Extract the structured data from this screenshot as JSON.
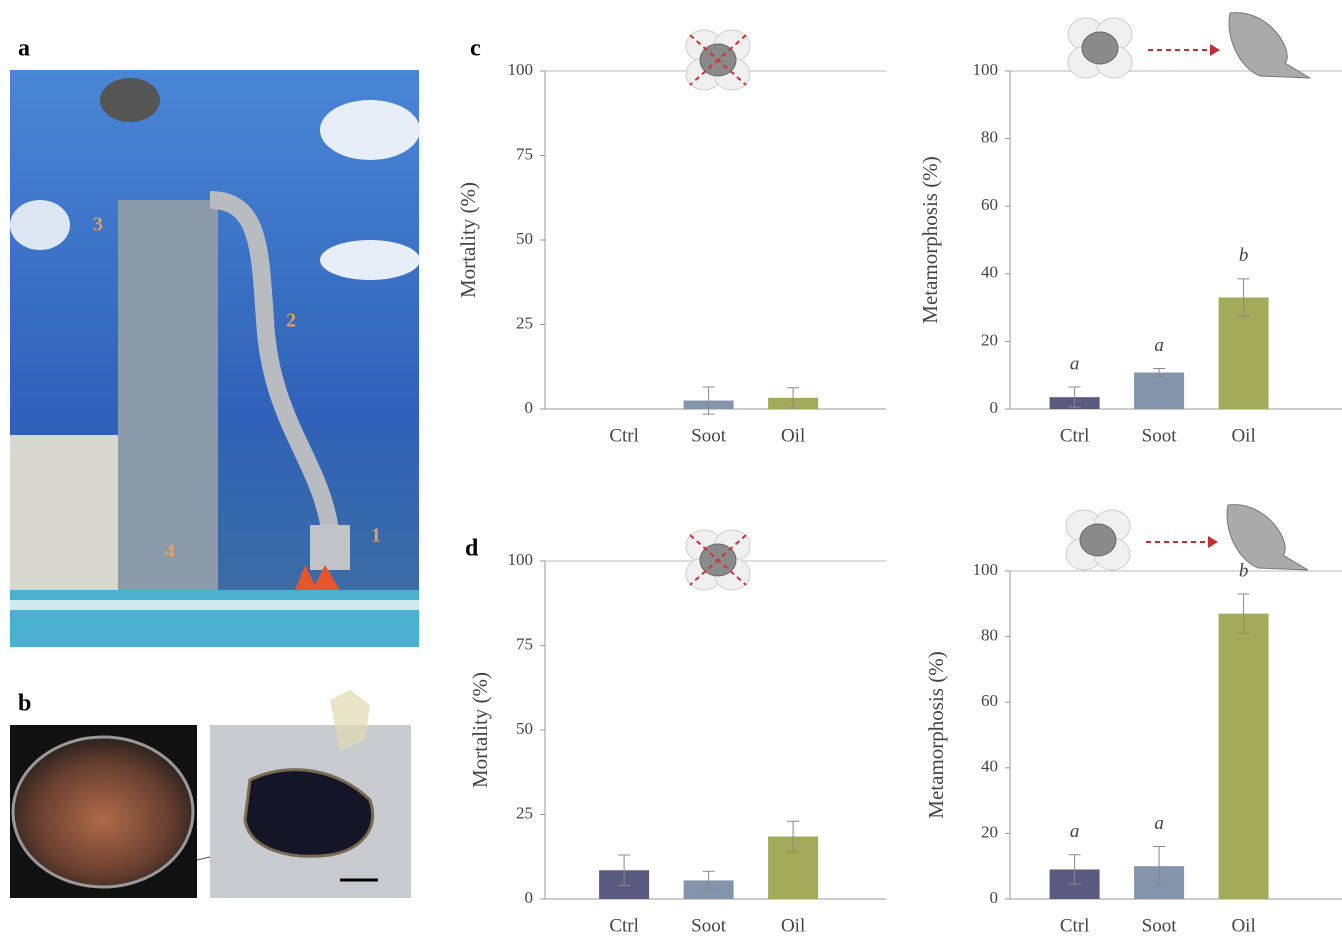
{
  "panel_labels": [
    "a",
    "b",
    "c",
    "d"
  ],
  "photo_labels": [
    "1",
    "2",
    "3",
    "4"
  ],
  "chart_data": [
    {
      "type": "bar",
      "ylabel": "Mortality (%)",
      "categories": [
        "Ctrl",
        "Soot",
        "Oil"
      ],
      "values": [
        0,
        2.5,
        3.3
      ],
      "errors": [
        0,
        4,
        3
      ],
      "colors": [
        "#5a5a80",
        "#8494ab",
        "#a2ab5a"
      ],
      "ylim": [
        0,
        100
      ],
      "yticks": [
        0,
        25,
        50,
        75,
        100
      ]
    },
    {
      "type": "bar",
      "ylabel": "Metamorphosis (%)",
      "categories": [
        "Ctrl",
        "Soot",
        "Oil"
      ],
      "values": [
        3.5,
        10.8,
        33
      ],
      "errors": [
        3,
        1.2,
        5.5
      ],
      "colors": [
        "#5a5a80",
        "#8494ab",
        "#a2ab5a"
      ],
      "annotations": [
        "a",
        "a",
        "b"
      ],
      "ylim": [
        0,
        100
      ],
      "yticks": [
        0,
        20,
        40,
        60,
        80,
        100
      ]
    },
    {
      "type": "bar",
      "ylabel": "Mortality (%)",
      "categories": [
        "Ctrl",
        "Soot",
        "Oil"
      ],
      "values": [
        8.5,
        5.5,
        18.5
      ],
      "errors": [
        4.5,
        2.7,
        4.5
      ],
      "colors": [
        "#5a5a80",
        "#8494ab",
        "#a2ab5a"
      ],
      "ylim": [
        0,
        100
      ],
      "yticks": [
        0,
        25,
        50,
        75,
        100
      ]
    },
    {
      "type": "bar",
      "ylabel": "Metamorphosis (%)",
      "categories": [
        "Ctrl",
        "Soot",
        "Oil"
      ],
      "values": [
        9,
        10,
        87
      ],
      "errors": [
        4.5,
        6,
        6
      ],
      "colors": [
        "#5a5a80",
        "#8494ab",
        "#a2ab5a"
      ],
      "annotations": [
        "a",
        "a",
        "b"
      ],
      "ylim": [
        0,
        100
      ],
      "yticks": [
        0,
        20,
        40,
        60,
        80,
        100
      ]
    }
  ]
}
